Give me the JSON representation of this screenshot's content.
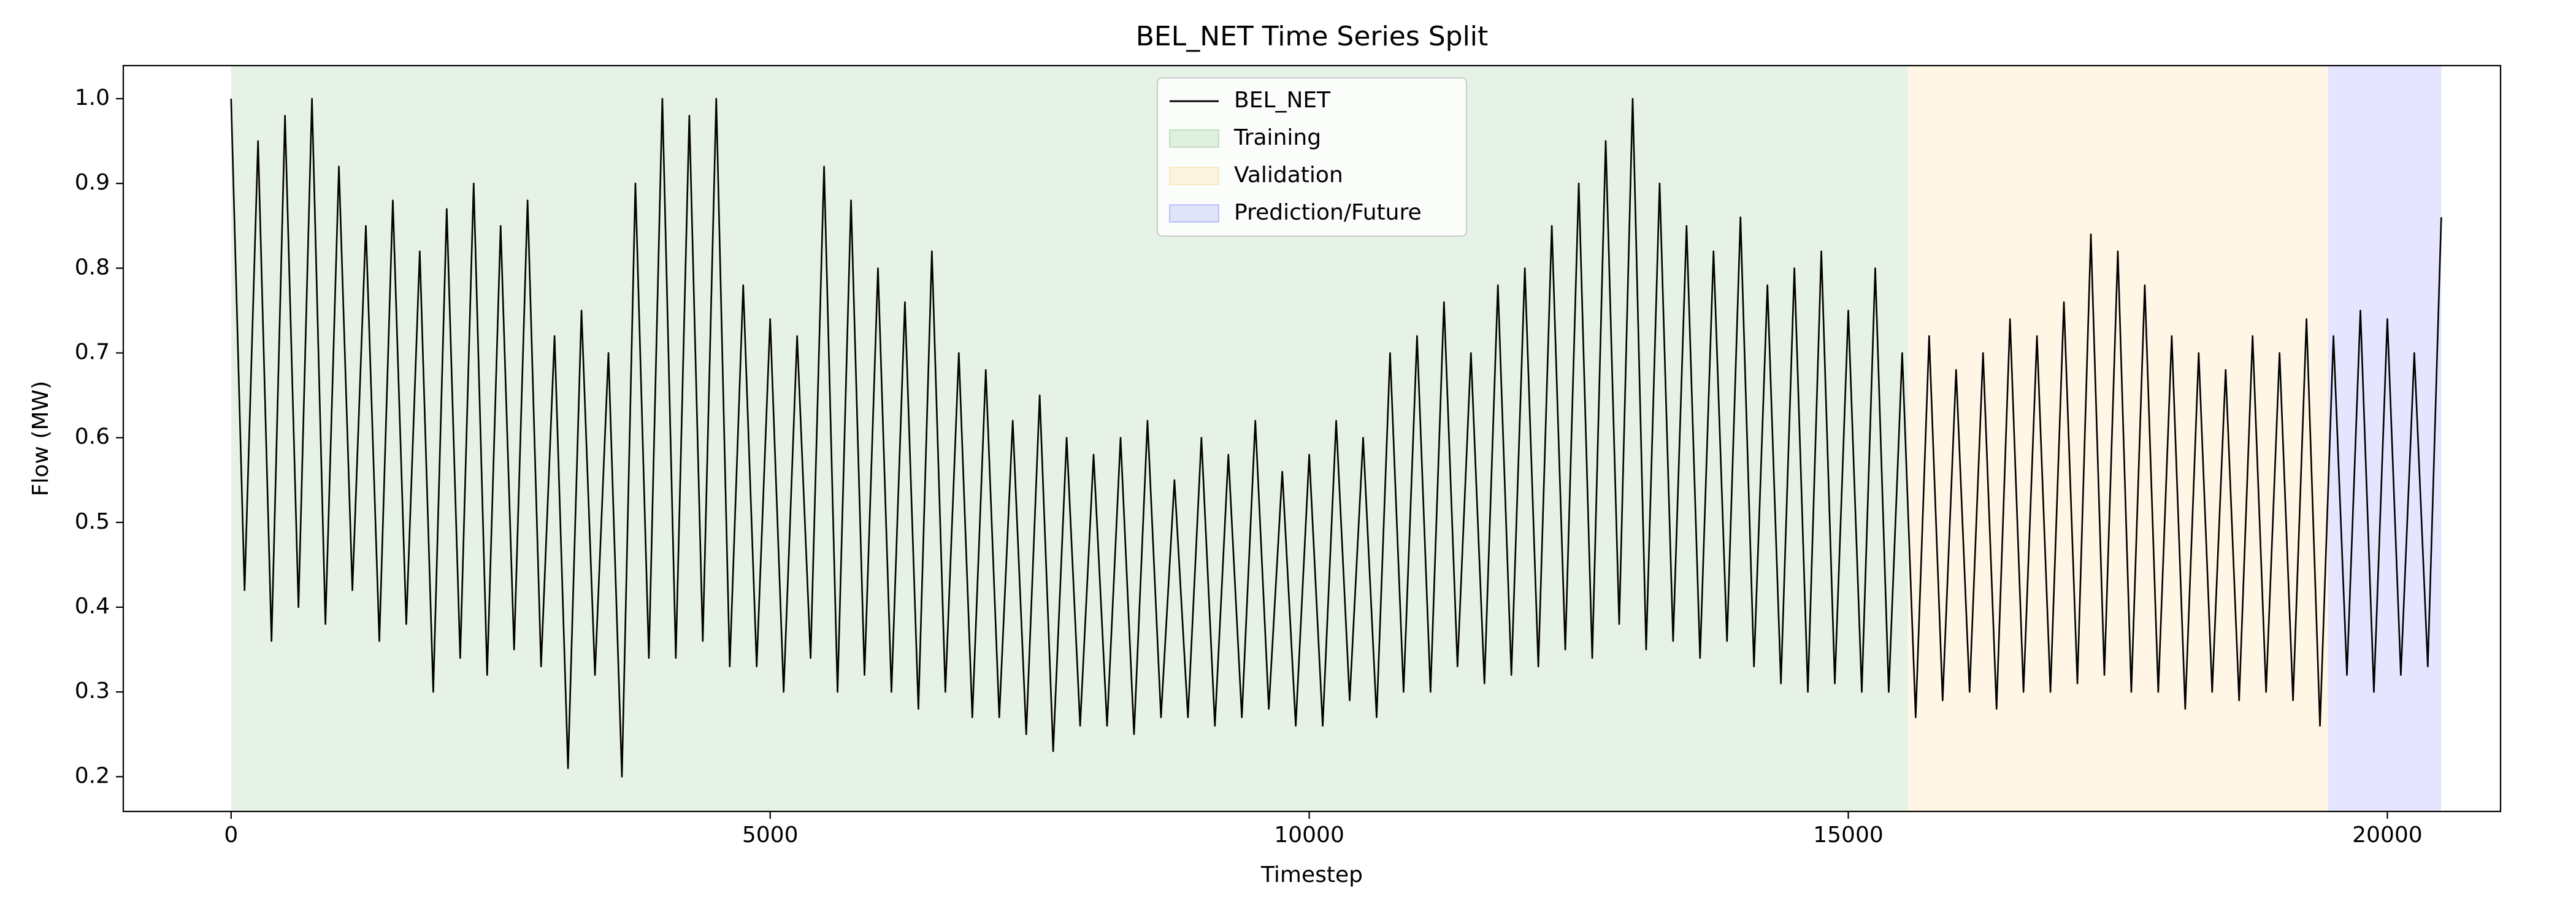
{
  "chart_data": {
    "type": "line",
    "title": "BEL_NET Time Series Split",
    "x_label": "Timestep",
    "y_label": "Flow (MW)",
    "x": [
      0,
      125,
      250,
      375,
      500,
      625,
      750,
      875,
      1000,
      1125,
      1250,
      1375,
      1500,
      1625,
      1750,
      1875,
      2000,
      2125,
      2250,
      2375,
      2500,
      2625,
      2750,
      2875,
      3000,
      3125,
      3250,
      3375,
      3500,
      3625,
      3750,
      3875,
      4000,
      4125,
      4250,
      4375,
      4500,
      4625,
      4750,
      4875,
      5000,
      5125,
      5250,
      5375,
      5500,
      5625,
      5750,
      5875,
      6000,
      6125,
      6250,
      6375,
      6500,
      6625,
      6750,
      6875,
      7000,
      7125,
      7250,
      7375,
      7500,
      7625,
      7750,
      7875,
      8000,
      8125,
      8250,
      8375,
      8500,
      8625,
      8750,
      8875,
      9000,
      9125,
      9250,
      9375,
      9500,
      9625,
      9750,
      9875,
      10000,
      10125,
      10250,
      10375,
      10500,
      10625,
      10750,
      10875,
      11000,
      11125,
      11250,
      11375,
      11500,
      11625,
      11750,
      11875,
      12000,
      12125,
      12250,
      12375,
      12500,
      12625,
      12750,
      12875,
      13000,
      13125,
      13250,
      13375,
      13500,
      13625,
      13750,
      13875,
      14000,
      14125,
      14250,
      14375,
      14500,
      14625,
      14750,
      14875,
      15000,
      15125,
      15250,
      15375,
      15500,
      15625,
      15750,
      15875,
      16000,
      16125,
      16250,
      16375,
      16500,
      16625,
      16750,
      16875,
      17000,
      17125,
      17250,
      17375,
      17500,
      17625,
      17750,
      17875,
      18000,
      18125,
      18250,
      18375,
      18500,
      18625,
      18750,
      18875,
      19000,
      19125,
      19250,
      19375,
      19500,
      19625,
      19750,
      19875,
      20000,
      20125,
      20250,
      20375,
      20500
    ],
    "series": [
      {
        "name": "BEL_NET",
        "color": "#000000",
        "values": [
          1.0,
          0.42,
          0.95,
          0.36,
          0.98,
          0.4,
          1.0,
          0.38,
          0.92,
          0.42,
          0.85,
          0.36,
          0.88,
          0.38,
          0.82,
          0.3,
          0.87,
          0.34,
          0.9,
          0.32,
          0.85,
          0.35,
          0.88,
          0.33,
          0.72,
          0.21,
          0.75,
          0.32,
          0.7,
          0.2,
          0.9,
          0.34,
          1.0,
          0.34,
          0.98,
          0.36,
          1.0,
          0.33,
          0.78,
          0.33,
          0.74,
          0.3,
          0.72,
          0.34,
          0.92,
          0.3,
          0.88,
          0.32,
          0.8,
          0.3,
          0.76,
          0.28,
          0.82,
          0.3,
          0.7,
          0.27,
          0.68,
          0.27,
          0.62,
          0.25,
          0.65,
          0.23,
          0.6,
          0.26,
          0.58,
          0.26,
          0.6,
          0.25,
          0.62,
          0.27,
          0.55,
          0.27,
          0.6,
          0.26,
          0.58,
          0.27,
          0.62,
          0.28,
          0.56,
          0.26,
          0.58,
          0.26,
          0.62,
          0.29,
          0.6,
          0.27,
          0.7,
          0.3,
          0.72,
          0.3,
          0.76,
          0.33,
          0.7,
          0.31,
          0.78,
          0.32,
          0.8,
          0.33,
          0.85,
          0.35,
          0.9,
          0.34,
          0.95,
          0.38,
          1.0,
          0.35,
          0.9,
          0.36,
          0.85,
          0.34,
          0.82,
          0.36,
          0.86,
          0.33,
          0.78,
          0.31,
          0.8,
          0.3,
          0.82,
          0.31,
          0.75,
          0.3,
          0.8,
          0.3,
          0.7,
          0.27,
          0.72,
          0.29,
          0.68,
          0.3,
          0.7,
          0.28,
          0.74,
          0.3,
          0.72,
          0.3,
          0.76,
          0.31,
          0.84,
          0.32,
          0.82,
          0.3,
          0.78,
          0.3,
          0.72,
          0.28,
          0.7,
          0.3,
          0.68,
          0.29,
          0.72,
          0.3,
          0.7,
          0.29,
          0.74,
          0.26,
          0.72,
          0.32,
          0.75,
          0.3,
          0.74,
          0.32,
          0.7,
          0.33,
          0.86
        ]
      }
    ],
    "spans": [
      {
        "name": "Training",
        "start": 0,
        "end": 15550,
        "color": "#008000"
      },
      {
        "name": "Validation",
        "start": 15550,
        "end": 19450,
        "color": "#ffa500"
      },
      {
        "name": "Prediction/Future",
        "start": 19450,
        "end": 20500,
        "color": "#0000ff"
      }
    ],
    "xlim": [
      -1000,
      21050
    ],
    "ylim": [
      0.159,
      1.039
    ],
    "xticks": [
      0,
      5000,
      10000,
      15000,
      20000
    ],
    "yticks": [
      0.2,
      0.3,
      0.4,
      0.5,
      0.6,
      0.7,
      0.8,
      0.9,
      {
        "value": 1,
        "label": "1.0"
      }
    ],
    "legend": "upper center"
  }
}
